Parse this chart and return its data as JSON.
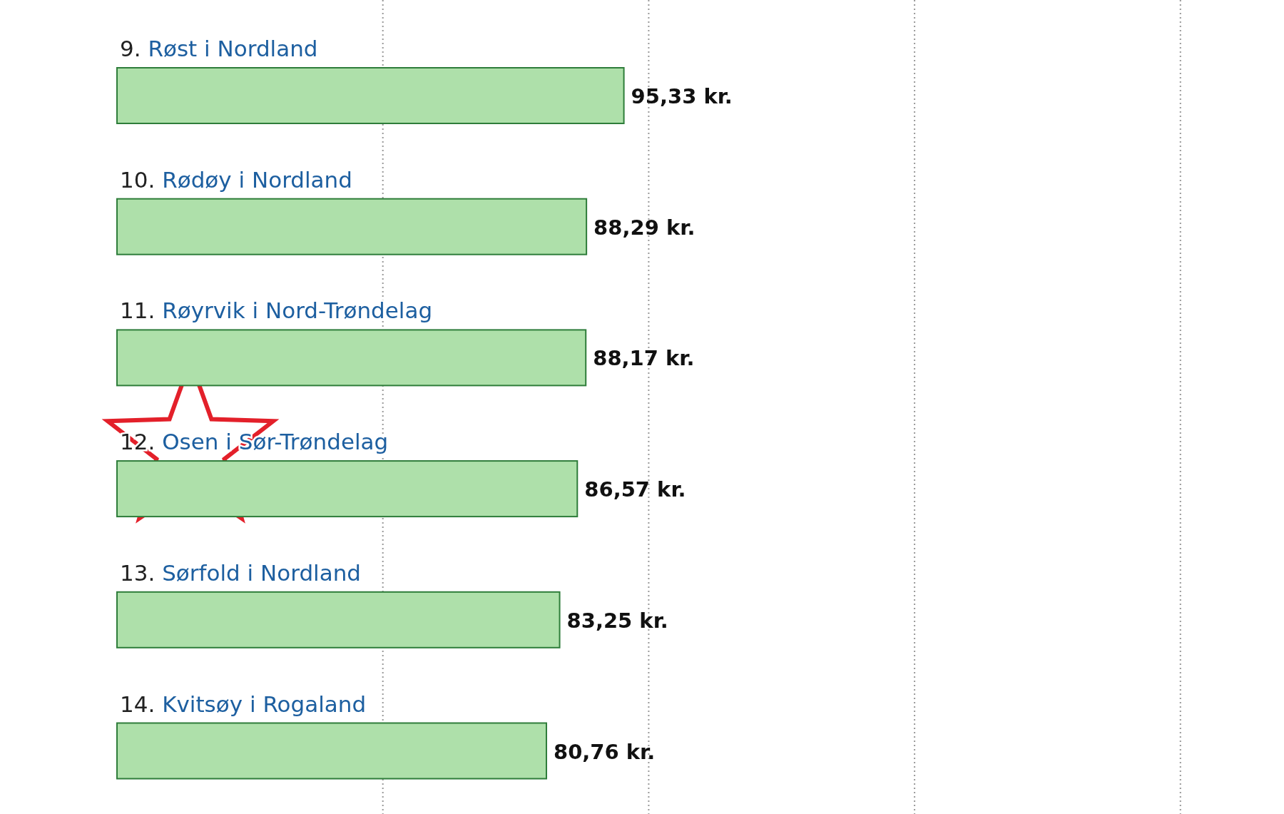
{
  "chart_data": {
    "type": "bar",
    "orientation": "horizontal",
    "categories": [
      "9. Røst i Nordland",
      "10. Rødøy i Nordland",
      "11. Røyrvik i Nord-Trøndelag",
      "12. Osen i Sør-Trøndelag",
      "13. Sørfold i Nordland",
      "14. Kvitsøy i Rogaland"
    ],
    "values": [
      95.33,
      88.29,
      88.17,
      86.57,
      83.25,
      80.76
    ],
    "value_labels": [
      "95,33 kr.",
      "88,29 kr.",
      "88,17 kr.",
      "86,57 kr.",
      "83,25 kr.",
      "80,76 kr."
    ],
    "color": "#aee0aa",
    "xlim": [
      0,
      220
    ],
    "xticks": [
      {
        "value": 50,
        "label": null
      },
      {
        "value": 100,
        "label": null
      },
      {
        "value": 150,
        "label": null
      },
      {
        "value": 200,
        "label": null
      }
    ],
    "grid": "x",
    "tick_labels": "y"
  }
}
